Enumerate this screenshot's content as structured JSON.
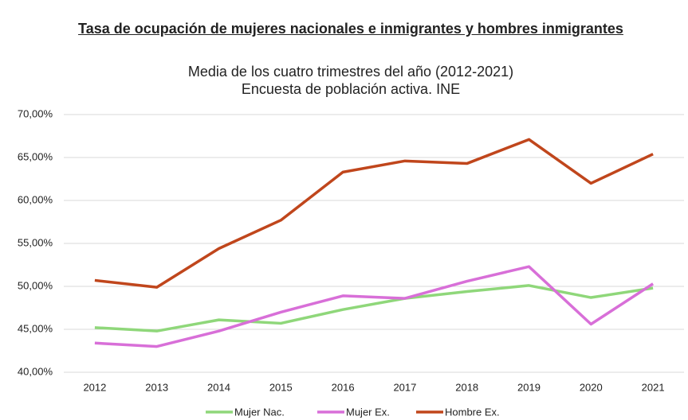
{
  "chart_data": {
    "type": "line",
    "title": "Tasa de ocupación de mujeres nacionales e inmigrantes y hombres inmigrantes",
    "subtitle": [
      "Media de los cuatro trimestres del año (2012-2021)",
      "Encuesta de población activa. INE"
    ],
    "categories": [
      "2012",
      "2013",
      "2014",
      "2015",
      "2016",
      "2017",
      "2018",
      "2019",
      "2020",
      "2021"
    ],
    "series": [
      {
        "name": "Mujer Nac.",
        "color": "#8fd77a",
        "values": [
          45.2,
          44.8,
          46.1,
          45.7,
          47.3,
          48.6,
          49.4,
          50.1,
          48.7,
          49.8
        ]
      },
      {
        "name": "Mujer Ex.",
        "color": "#d86fd8",
        "values": [
          43.4,
          43.0,
          44.8,
          47.0,
          48.9,
          48.6,
          50.6,
          52.3,
          45.6,
          50.3
        ]
      },
      {
        "name": "Hombre Ex.",
        "color": "#c0461c",
        "values": [
          50.7,
          49.9,
          54.4,
          57.7,
          63.3,
          64.6,
          64.3,
          67.1,
          62.0,
          65.4
        ]
      }
    ],
    "ylim": [
      40,
      70
    ],
    "yticks": [
      {
        "value": 40,
        "label": "40,00%"
      },
      {
        "value": 45,
        "label": "45,00%"
      },
      {
        "value": 50,
        "label": "50,00%"
      },
      {
        "value": 55,
        "label": "55,00%"
      },
      {
        "value": 60,
        "label": "60,00%"
      },
      {
        "value": 65,
        "label": "65,00%"
      },
      {
        "value": 70,
        "label": "70,00%"
      }
    ],
    "grid": true,
    "legend": "bottom"
  }
}
